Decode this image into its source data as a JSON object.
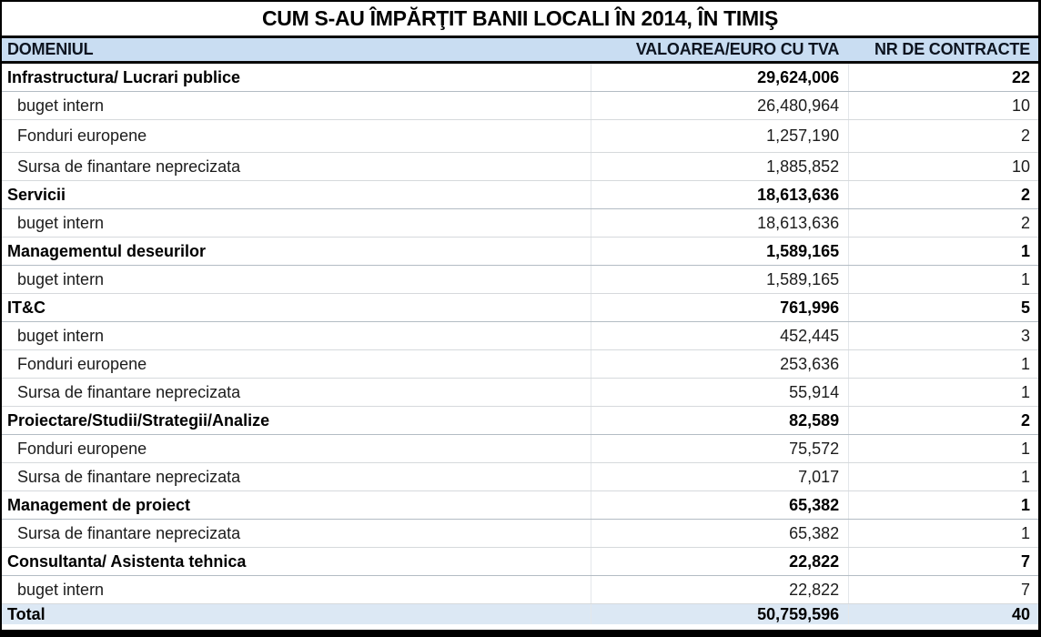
{
  "chart_data": {
    "type": "table",
    "title": "CUM S-AU ÎMPĂRŢIT BANII LOCALI ÎN 2014, ÎN TIMIŞ",
    "columns": [
      "DOMENIUL",
      "VALOAREA/EURO CU TVA",
      "NR DE CONTRACTE"
    ],
    "rows": [
      {
        "label": "Infrastructura/ Lucrari publice",
        "value": "29,624,006",
        "contracts": "22",
        "level": "category"
      },
      {
        "label": "buget intern",
        "value": "26,480,964",
        "contracts": "10",
        "level": "sub"
      },
      {
        "label": "Fonduri europene",
        "value": "1,257,190",
        "contracts": "2",
        "level": "sub"
      },
      {
        "label": "Sursa de finantare neprecizata",
        "value": "1,885,852",
        "contracts": "10",
        "level": "sub"
      },
      {
        "label": "Servicii",
        "value": "18,613,636",
        "contracts": "2",
        "level": "category"
      },
      {
        "label": "buget intern",
        "value": "18,613,636",
        "contracts": "2",
        "level": "sub"
      },
      {
        "label": "Managementul deseurilor",
        "value": "1,589,165",
        "contracts": "1",
        "level": "category"
      },
      {
        "label": "buget intern",
        "value": "1,589,165",
        "contracts": "1",
        "level": "sub"
      },
      {
        "label": "IT&C",
        "value": "761,996",
        "contracts": "5",
        "level": "category"
      },
      {
        "label": "buget intern",
        "value": "452,445",
        "contracts": "3",
        "level": "sub"
      },
      {
        "label": "Fonduri europene",
        "value": "253,636",
        "contracts": "1",
        "level": "sub"
      },
      {
        "label": "Sursa de finantare neprecizata",
        "value": "55,914",
        "contracts": "1",
        "level": "sub"
      },
      {
        "label": "Proiectare/Studii/Strategii/Analize",
        "value": "82,589",
        "contracts": "2",
        "level": "category"
      },
      {
        "label": "Fonduri europene",
        "value": "75,572",
        "contracts": "1",
        "level": "sub"
      },
      {
        "label": "Sursa de finantare neprecizata",
        "value": "7,017",
        "contracts": "1",
        "level": "sub"
      },
      {
        "label": "Management de proiect",
        "value": "65,382",
        "contracts": "1",
        "level": "category"
      },
      {
        "label": "Sursa de finantare neprecizata",
        "value": "65,382",
        "contracts": "1",
        "level": "sub"
      },
      {
        "label": "Consultanta/ Asistenta tehnica",
        "value": "22,822",
        "contracts": "7",
        "level": "category"
      },
      {
        "label": "buget intern",
        "value": "22,822",
        "contracts": "7",
        "level": "sub"
      }
    ],
    "total": {
      "label": "Total",
      "value": "50,759,596",
      "contracts": "40"
    },
    "colors": {
      "header_background": "#c9ddf2",
      "total_background": "#dce8f4",
      "border": "#000000",
      "gridline": "#d6d9dc"
    }
  }
}
